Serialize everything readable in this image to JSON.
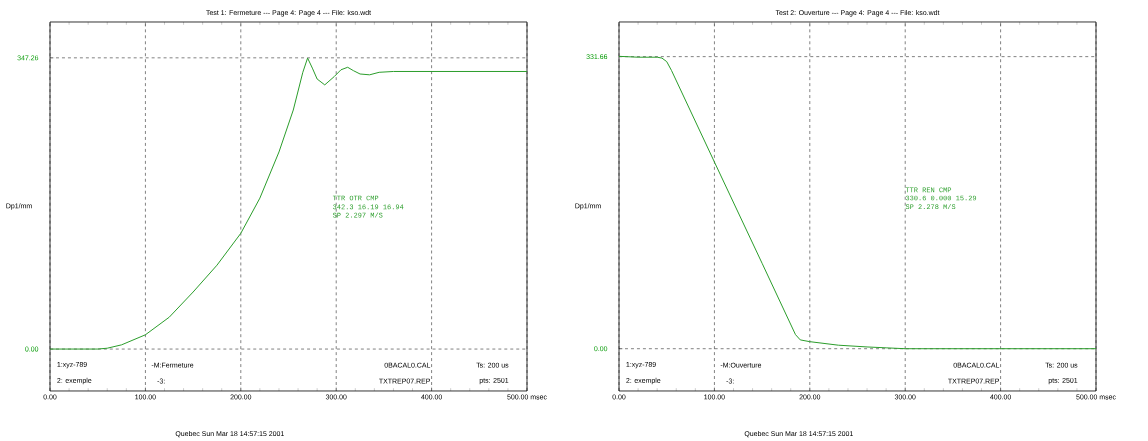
{
  "chart_data": [
    {
      "type": "line",
      "title": "Test 1: Fermeture --- Page 4:      Page 4 --- File: kso.wdt",
      "ylabel": "Dp1/mm",
      "xlim": [
        0,
        500
      ],
      "xticks": [
        {
          "value": 0,
          "label": "0.00"
        },
        {
          "value": 100,
          "label": "100.00"
        },
        {
          "value": 200,
          "label": "200.00"
        },
        {
          "value": 300,
          "label": "300.00"
        },
        {
          "value": 400,
          "label": "400.00"
        },
        {
          "value": 500,
          "label": "500.00 msec"
        }
      ],
      "ylim": [
        -50,
        390
      ],
      "yticks": [
        {
          "value": 0,
          "label": "0.00"
        },
        {
          "value": 347.26,
          "label": "347.26"
        }
      ],
      "grid": true,
      "series": [
        {
          "color": "#2a9d2a",
          "x": [
            0,
            40,
            50,
            60,
            75,
            100,
            125,
            150,
            175,
            200,
            220,
            240,
            255,
            265,
            270,
            275,
            280,
            288,
            298,
            305,
            312,
            318,
            325,
            335,
            345,
            360,
            400,
            450,
            500
          ],
          "values": [
            0,
            0,
            0,
            1,
            5,
            17,
            38,
            68,
            100,
            138,
            180,
            235,
            285,
            330,
            347,
            335,
            322,
            315,
            325,
            333,
            336,
            332,
            328,
            327,
            330,
            331,
            331,
            331,
            331
          ]
        }
      ],
      "annotations": [
        "TTR OTR CMP",
        "342.3 16.19 16.94",
        "SP 2.297 M/S",
        "1:xyz-789",
        "2: exemple",
        "-M:Fermeture",
        "-3:",
        "0BACAL0.CAL",
        "TXTREP07.REP",
        "Ts: 200 us",
        "pts: 2501",
        "Quebec  Sun Mar 18 14:57:15 2001"
      ]
    },
    {
      "type": "line",
      "title": "Test 2: Ouverture --- Page 4:      Page 4 --- File: kso.wdt",
      "ylabel": "Dp1/mm",
      "xlim": [
        0,
        500
      ],
      "xticks": [
        {
          "value": 0,
          "label": "0.00"
        },
        {
          "value": 100,
          "label": "100.00"
        },
        {
          "value": 200,
          "label": "200.00"
        },
        {
          "value": 300,
          "label": "300.00"
        },
        {
          "value": 400,
          "label": "400.00"
        },
        {
          "value": 500,
          "label": "500.00 msec"
        }
      ],
      "ylim": [
        -48,
        371
      ],
      "yticks": [
        {
          "value": 0,
          "label": "0.00"
        },
        {
          "value": 331.66,
          "label": "331.66"
        }
      ],
      "grid": true,
      "series": [
        {
          "color": "#2a9d2a",
          "x": [
            0,
            20,
            40,
            45,
            50,
            55,
            100,
            150,
            185,
            190,
            200,
            215,
            230,
            260,
            280,
            300,
            400,
            500
          ],
          "values": [
            332,
            331,
            331,
            330,
            326,
            316,
            212,
            97,
            16,
            10,
            8,
            6,
            4,
            2,
            1,
            0,
            0,
            0
          ]
        }
      ],
      "annotations": [
        "TTR REN CMP",
        "330.6 0.000 15.29",
        "SP 2.278 M/S",
        "1:xyz-789",
        "2: exemple",
        "-M:Ouverture",
        "-3:",
        "0BACAL0.CAL",
        "TXTREP07.REP",
        "Ts: 200 us",
        "pts: 2501",
        "Quebec  Sun Mar 18 14:57:15 2001"
      ]
    }
  ]
}
